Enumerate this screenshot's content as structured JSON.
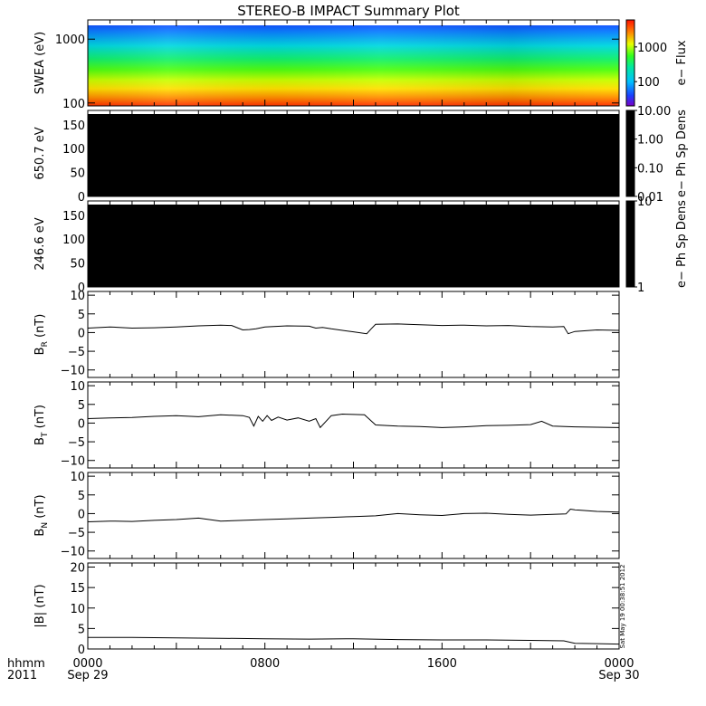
{
  "title": "STEREO-B IMPACT Summary Plot",
  "x_axis": {
    "row1_prefix": "hhmm",
    "row2_prefix": "2011",
    "ticks": [
      {
        "hours": 0,
        "label": "0000",
        "sublabel": "Sep 29"
      },
      {
        "hours": 8,
        "label": "0800",
        "sublabel": ""
      },
      {
        "hours": 16,
        "label": "1600",
        "sublabel": ""
      },
      {
        "hours": 24,
        "label": "0000",
        "sublabel": "Sep 30"
      }
    ],
    "range_hours": [
      0,
      24
    ]
  },
  "timestamp": "Sat May 19 00:38:51 2012",
  "chart_data": [
    {
      "type": "heatmap",
      "name": "swea",
      "ylabel": "SWEA (eV)",
      "yscale": "log",
      "ylim": [
        90,
        2000
      ],
      "yticks": [
        {
          "value": 100,
          "label": "100"
        },
        {
          "value": 1000,
          "label": "1000"
        }
      ],
      "colorbar": {
        "label": "e− Flux",
        "scale": "log",
        "range": [
          20,
          6000
        ],
        "ticks": [
          {
            "value": 100,
            "label": "100"
          },
          {
            "value": 1000,
            "label": "1000"
          }
        ]
      },
      "description_values": "energy flux decreasing with energy; high (red) near 100 eV, low (blue) near 2000 eV"
    },
    {
      "type": "heatmap",
      "name": "pad650",
      "ylabel": "650.7 eV",
      "ylim": [
        0,
        180
      ],
      "yticks": [
        {
          "value": 0,
          "label": "0"
        },
        {
          "value": 50,
          "label": "50"
        },
        {
          "value": 100,
          "label": "100"
        },
        {
          "value": 150,
          "label": "150"
        }
      ],
      "fill": "#000000",
      "colorbar": {
        "label": "e− Ph Sp Dens",
        "scale": "log",
        "range": [
          0.01,
          10
        ],
        "ticks": [
          {
            "value": 0.01,
            "label": "0.01"
          },
          {
            "value": 0.1,
            "label": "0.10"
          },
          {
            "value": 1,
            "label": "1.00"
          },
          {
            "value": 10,
            "label": "10.00"
          }
        ]
      }
    },
    {
      "type": "heatmap",
      "name": "pad246",
      "ylabel": "246.6 eV",
      "ylim": [
        0,
        180
      ],
      "yticks": [
        {
          "value": 0,
          "label": "0"
        },
        {
          "value": 50,
          "label": "50"
        },
        {
          "value": 100,
          "label": "100"
        },
        {
          "value": 150,
          "label": "150"
        }
      ],
      "fill": "#000000",
      "colorbar": {
        "label": "e− Ph Sp Dens",
        "scale": "log",
        "range": [
          1,
          10
        ],
        "ticks": [
          {
            "value": 1,
            "label": "1"
          },
          {
            "value": 10,
            "label": "10"
          }
        ]
      }
    },
    {
      "type": "line",
      "name": "br",
      "ylabel_main": "B",
      "ylabel_sub": "R",
      "ylabel_unit": " (nT)",
      "ylim": [
        -12,
        11
      ],
      "yticks": [
        {
          "value": -10,
          "label": "−10"
        },
        {
          "value": -5,
          "label": "−5"
        },
        {
          "value": 0,
          "label": "0"
        },
        {
          "value": 5,
          "label": "5"
        },
        {
          "value": 10,
          "label": "10"
        }
      ],
      "x": [
        0,
        1,
        2,
        3,
        4,
        5,
        6,
        6.5,
        7,
        7.3,
        7.6,
        8,
        9,
        10,
        10.3,
        10.6,
        11,
        12,
        12.6,
        12.8,
        13,
        14,
        15,
        16,
        17,
        18,
        19,
        20,
        21,
        21.5,
        21.7,
        22,
        23,
        24
      ],
      "y": [
        1.2,
        1.5,
        1.2,
        1.3,
        1.5,
        1.8,
        2.0,
        1.9,
        0.7,
        0.8,
        1.0,
        1.5,
        1.8,
        1.7,
        1.2,
        1.4,
        1.0,
        0.2,
        -0.3,
        1.0,
        2.2,
        2.3,
        2.1,
        1.9,
        2.0,
        1.8,
        1.9,
        1.6,
        1.5,
        1.6,
        -0.3,
        0.3,
        0.7,
        0.6
      ]
    },
    {
      "type": "line",
      "name": "bt",
      "ylabel_main": "B",
      "ylabel_sub": "T",
      "ylabel_unit": " (nT)",
      "ylim": [
        -12,
        11
      ],
      "yticks": [
        {
          "value": -10,
          "label": "−10"
        },
        {
          "value": -5,
          "label": "−5"
        },
        {
          "value": 0,
          "label": "0"
        },
        {
          "value": 5,
          "label": "5"
        },
        {
          "value": 10,
          "label": "10"
        }
      ],
      "x": [
        0,
        1,
        2,
        3,
        4,
        5,
        6,
        7,
        7.3,
        7.5,
        7.7,
        7.9,
        8.1,
        8.3,
        8.6,
        9,
        9.5,
        10,
        10.3,
        10.5,
        11,
        11.5,
        12,
        12.5,
        13,
        14,
        15,
        16,
        17,
        18,
        19,
        20,
        20.5,
        21,
        22,
        23,
        24
      ],
      "y": [
        1.2,
        1.4,
        1.5,
        1.8,
        2.0,
        1.7,
        2.2,
        2.0,
        1.5,
        -0.8,
        1.8,
        0.5,
        2.0,
        0.7,
        1.6,
        0.8,
        1.4,
        0.5,
        1.2,
        -1.2,
        2.0,
        2.4,
        2.3,
        2.2,
        -0.5,
        -0.8,
        -0.9,
        -1.2,
        -1.0,
        -0.7,
        -0.6,
        -0.4,
        0.5,
        -0.8,
        -1.0,
        -1.1,
        -1.2
      ]
    },
    {
      "type": "line",
      "name": "bn",
      "ylabel_main": "B",
      "ylabel_sub": "N",
      "ylabel_unit": " (nT)",
      "ylim": [
        -12,
        11
      ],
      "yticks": [
        {
          "value": -10,
          "label": "−10"
        },
        {
          "value": -5,
          "label": "−5"
        },
        {
          "value": 0,
          "label": "0"
        },
        {
          "value": 5,
          "label": "5"
        },
        {
          "value": 10,
          "label": "10"
        }
      ],
      "x": [
        0,
        1,
        2,
        3,
        4,
        5,
        6,
        7,
        8,
        9,
        10,
        11,
        12,
        13,
        14,
        15,
        16,
        17,
        18,
        19,
        20,
        21,
        21.6,
        21.8,
        22,
        23,
        24
      ],
      "y": [
        -2.2,
        -2.0,
        -2.1,
        -1.8,
        -1.6,
        -1.2,
        -2.0,
        -1.8,
        -1.6,
        -1.4,
        -1.2,
        -1.0,
        -0.8,
        -0.6,
        0.0,
        -0.3,
        -0.5,
        0.0,
        0.1,
        -0.2,
        -0.4,
        -0.2,
        -0.1,
        1.2,
        1.0,
        0.6,
        0.4
      ]
    },
    {
      "type": "line",
      "name": "bmag",
      "ylabel_main": "|B|",
      "ylabel_sub": "",
      "ylabel_unit": " (nT)",
      "ylim": [
        0,
        21
      ],
      "yticks": [
        {
          "value": 0,
          "label": "0"
        },
        {
          "value": 5,
          "label": "5"
        },
        {
          "value": 10,
          "label": "10"
        },
        {
          "value": 15,
          "label": "15"
        },
        {
          "value": 20,
          "label": "20"
        }
      ],
      "x": [
        0,
        2,
        4,
        6,
        8,
        10,
        12,
        14,
        16,
        18,
        20,
        21.5,
        22,
        23,
        24
      ],
      "y": [
        2.8,
        2.8,
        2.7,
        2.6,
        2.5,
        2.4,
        2.5,
        2.3,
        2.2,
        2.2,
        2.1,
        2.0,
        1.4,
        1.3,
        1.2
      ]
    }
  ]
}
